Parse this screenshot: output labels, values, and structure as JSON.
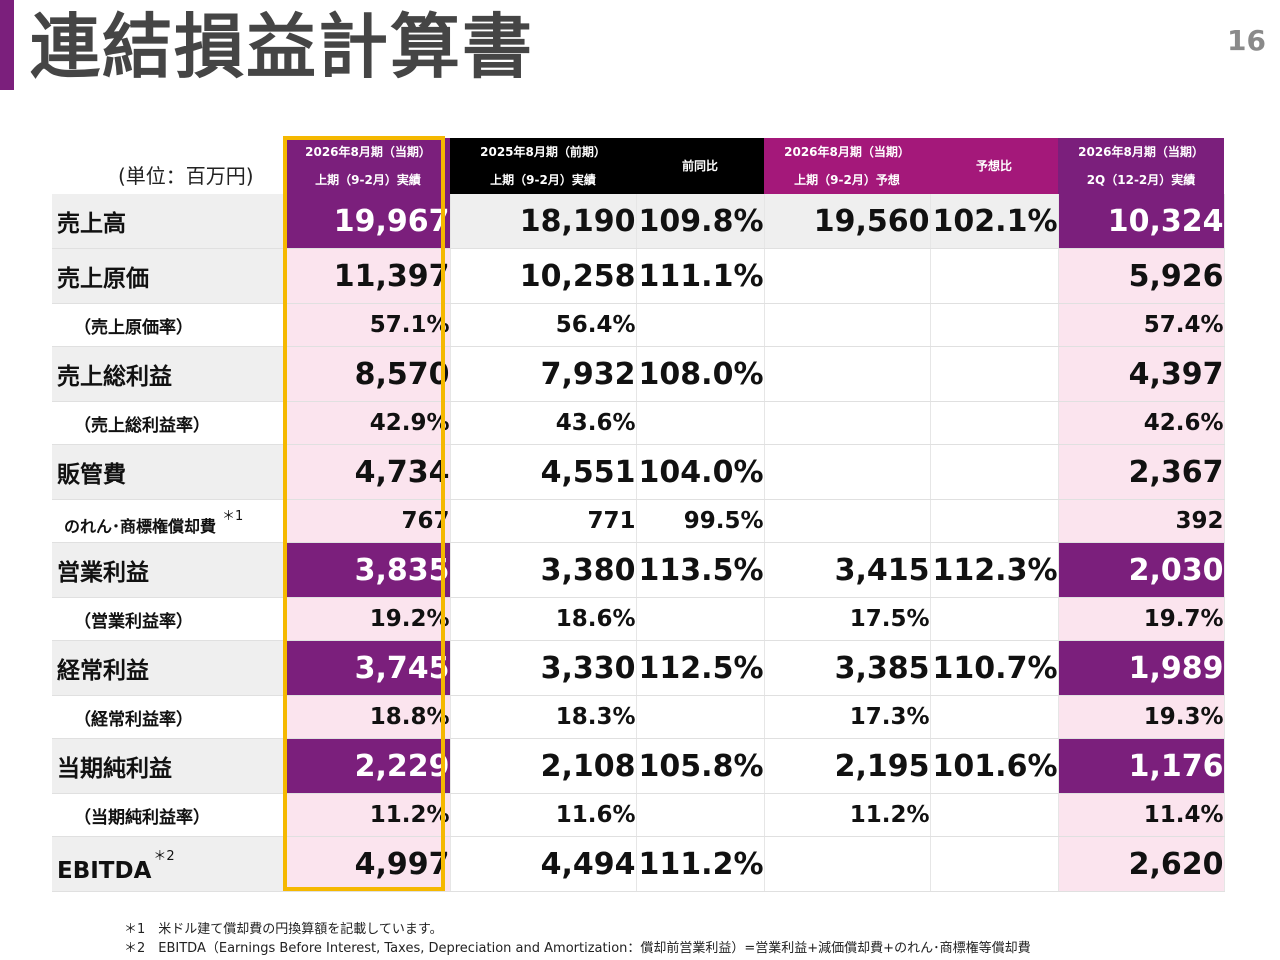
{
  "page": {
    "title": "連結損益計算書",
    "page_number": "16",
    "unit": "(単位：百万円)"
  },
  "columns": [
    {
      "line1": "2026年8月期（当期）",
      "line2": "上期（9-2月）実績"
    },
    {
      "line1": "2025年8月期（前期）",
      "line2": "上期（9-2月）実績"
    },
    {
      "line1": "前同比",
      "line2": ""
    },
    {
      "line1": "2026年8月期（当期）",
      "line2": "上期（9-2月）予想"
    },
    {
      "line1": "予想比",
      "line2": ""
    },
    {
      "line1": "2026年8月期（当期）",
      "line2": "2Q（12-2月）実績"
    }
  ],
  "rows": [
    {
      "label": "売上高",
      "values": [
        "19,967",
        "18,190",
        "109.8%",
        "19,560",
        "102.1%",
        "10,324"
      ]
    },
    {
      "label": "売上原価",
      "values": [
        "11,397",
        "10,258",
        "111.1%",
        "",
        "",
        "5,926"
      ]
    },
    {
      "label": "（売上原価率）",
      "values": [
        "57.1%",
        "56.4%",
        "",
        "",
        "",
        "57.4%"
      ]
    },
    {
      "label": "売上総利益",
      "values": [
        "8,570",
        "7,932",
        "108.0%",
        "",
        "",
        "4,397"
      ]
    },
    {
      "label": "（売上総利益率）",
      "values": [
        "42.9%",
        "43.6%",
        "",
        "",
        "",
        "42.6%"
      ]
    },
    {
      "label": "販管費",
      "values": [
        "4,734",
        "4,551",
        "104.0%",
        "",
        "",
        "2,367"
      ]
    },
    {
      "label": "のれん･商標権償却費",
      "note": "＊1",
      "values": [
        "767",
        "771",
        "99.5%",
        "",
        "",
        "392"
      ]
    },
    {
      "label": "営業利益",
      "values": [
        "3,835",
        "3,380",
        "113.5%",
        "3,415",
        "112.3%",
        "2,030"
      ]
    },
    {
      "label": "（営業利益率）",
      "values": [
        "19.2%",
        "18.6%",
        "",
        "17.5%",
        "",
        "19.7%"
      ]
    },
    {
      "label": "経常利益",
      "values": [
        "3,745",
        "3,330",
        "112.5%",
        "3,385",
        "110.7%",
        "1,989"
      ]
    },
    {
      "label": "（経常利益率）",
      "values": [
        "18.8%",
        "18.3%",
        "",
        "17.3%",
        "",
        "19.3%"
      ]
    },
    {
      "label": "当期純利益",
      "values": [
        "2,229",
        "2,108",
        "105.8%",
        "2,195",
        "101.6%",
        "1,176"
      ]
    },
    {
      "label": "（当期純利益率）",
      "values": [
        "11.2%",
        "11.6%",
        "",
        "11.2%",
        "",
        "11.4%"
      ]
    },
    {
      "label": "EBITDA",
      "note": "＊2",
      "values": [
        "4,997",
        "4,494",
        "111.2%",
        "",
        "",
        "2,620"
      ]
    }
  ],
  "footnotes": [
    "＊1　米ドル建て償却費の円換算額を記載しています。",
    "＊2　EBITDA（Earnings Before Interest, Taxes, Depreciation and Amortization：償却前営業利益）=営業利益+減価償却費+のれん･商標権等償却費"
  ],
  "colors": {
    "accent": "#7b1f7c",
    "magenta": "#a4187a",
    "pink": "#fbe4ee",
    "highlight_border": "#f5b800"
  }
}
